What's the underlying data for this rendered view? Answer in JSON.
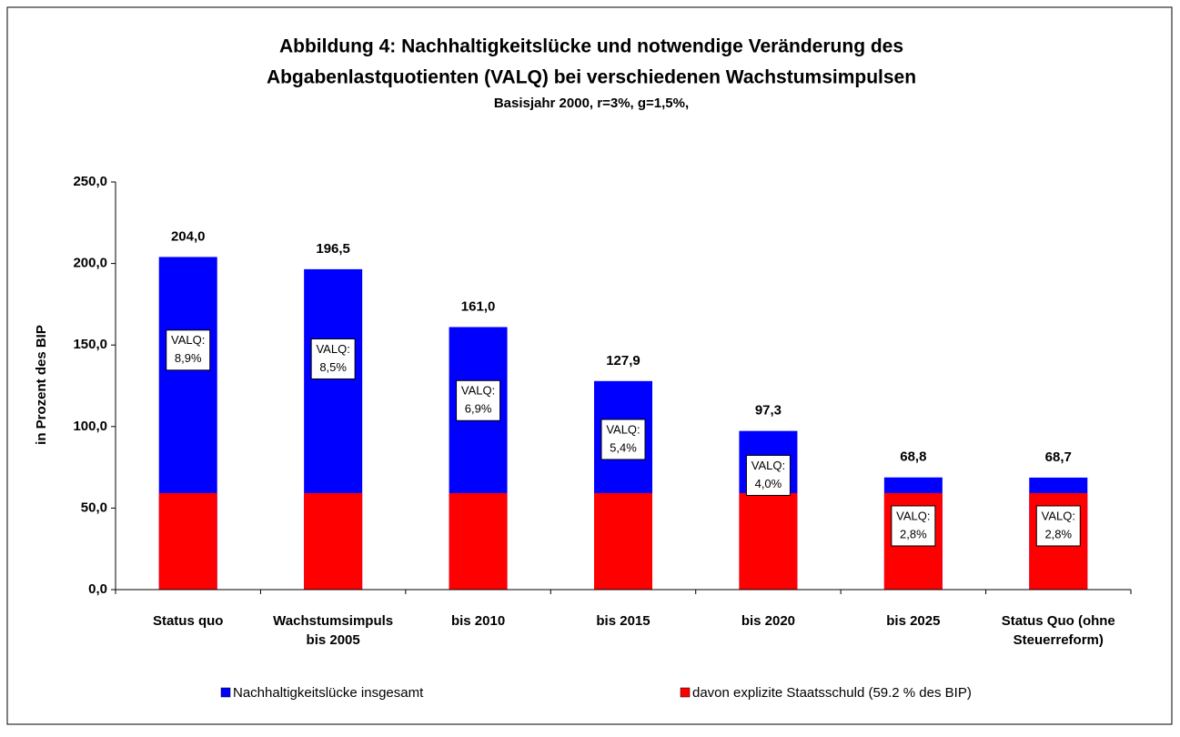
{
  "chart_data": {
    "type": "bar",
    "title": [
      "Abbildung 4: Nachhaltigkeitslücke und notwendige Veränderung des",
      "Abgabenlastquotienten (VALQ) bei verschiedenen Wachstumsimpulsen"
    ],
    "subtitle": "Basisjahr 2000, r=3%, g=1,5%,",
    "y_label": "in Prozent des BIP",
    "categories": [
      [
        "Status quo"
      ],
      [
        "Wachstumsimpuls",
        "bis 2005"
      ],
      [
        "bis 2010"
      ],
      [
        "bis 2015"
      ],
      [
        "bis 2020"
      ],
      [
        "bis 2025"
      ],
      [
        "Status Quo (ohne",
        "Steuerreform)"
      ]
    ],
    "series": [
      {
        "name": "Nachhaltigkeitslücke insgesamt",
        "color": "#0000ff",
        "values": [
          204.0,
          196.5,
          161.0,
          127.9,
          97.3,
          68.8,
          68.7
        ],
        "value_labels": [
          "204,0",
          "196,5",
          "161,0",
          "127,9",
          "97,3",
          "68,8",
          "68,7"
        ]
      },
      {
        "name": "davon explizite Staatsschuld (59.2 % des BIP)",
        "color": "#ff0000",
        "values": [
          59.2,
          59.2,
          59.2,
          59.2,
          59.2,
          59.2,
          59.2
        ]
      }
    ],
    "valq": {
      "label": "VALQ:",
      "values": [
        8.9,
        8.5,
        6.9,
        5.4,
        4.0,
        2.8,
        2.8
      ],
      "value_labels": [
        "8,9%",
        "8,5%",
        "6,9%",
        "5,4%",
        "4,0%",
        "2,8%",
        "2,8%"
      ]
    },
    "ylim": [
      0,
      250
    ],
    "yticks": [
      {
        "value": 0,
        "label": "0,0"
      },
      {
        "value": 50,
        "label": "50,0"
      },
      {
        "value": 100,
        "label": "100,0"
      },
      {
        "value": 150,
        "label": "150,0"
      },
      {
        "value": 200,
        "label": "200,0"
      },
      {
        "value": 250,
        "label": "250,0"
      }
    ],
    "overlap": true
  }
}
